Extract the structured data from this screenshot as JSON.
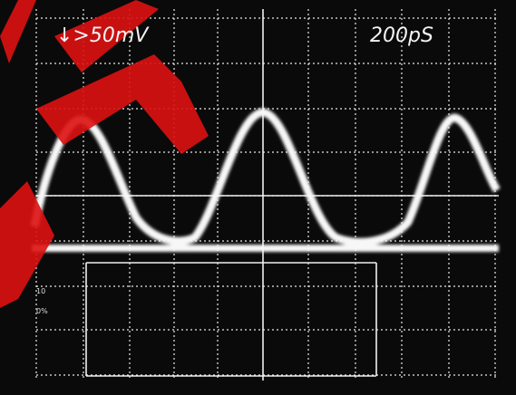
{
  "screen": {
    "volts_per_div": "↓>50mV",
    "time_per_div": "200pS",
    "graticule_labels": [
      "10",
      "0%"
    ]
  }
}
